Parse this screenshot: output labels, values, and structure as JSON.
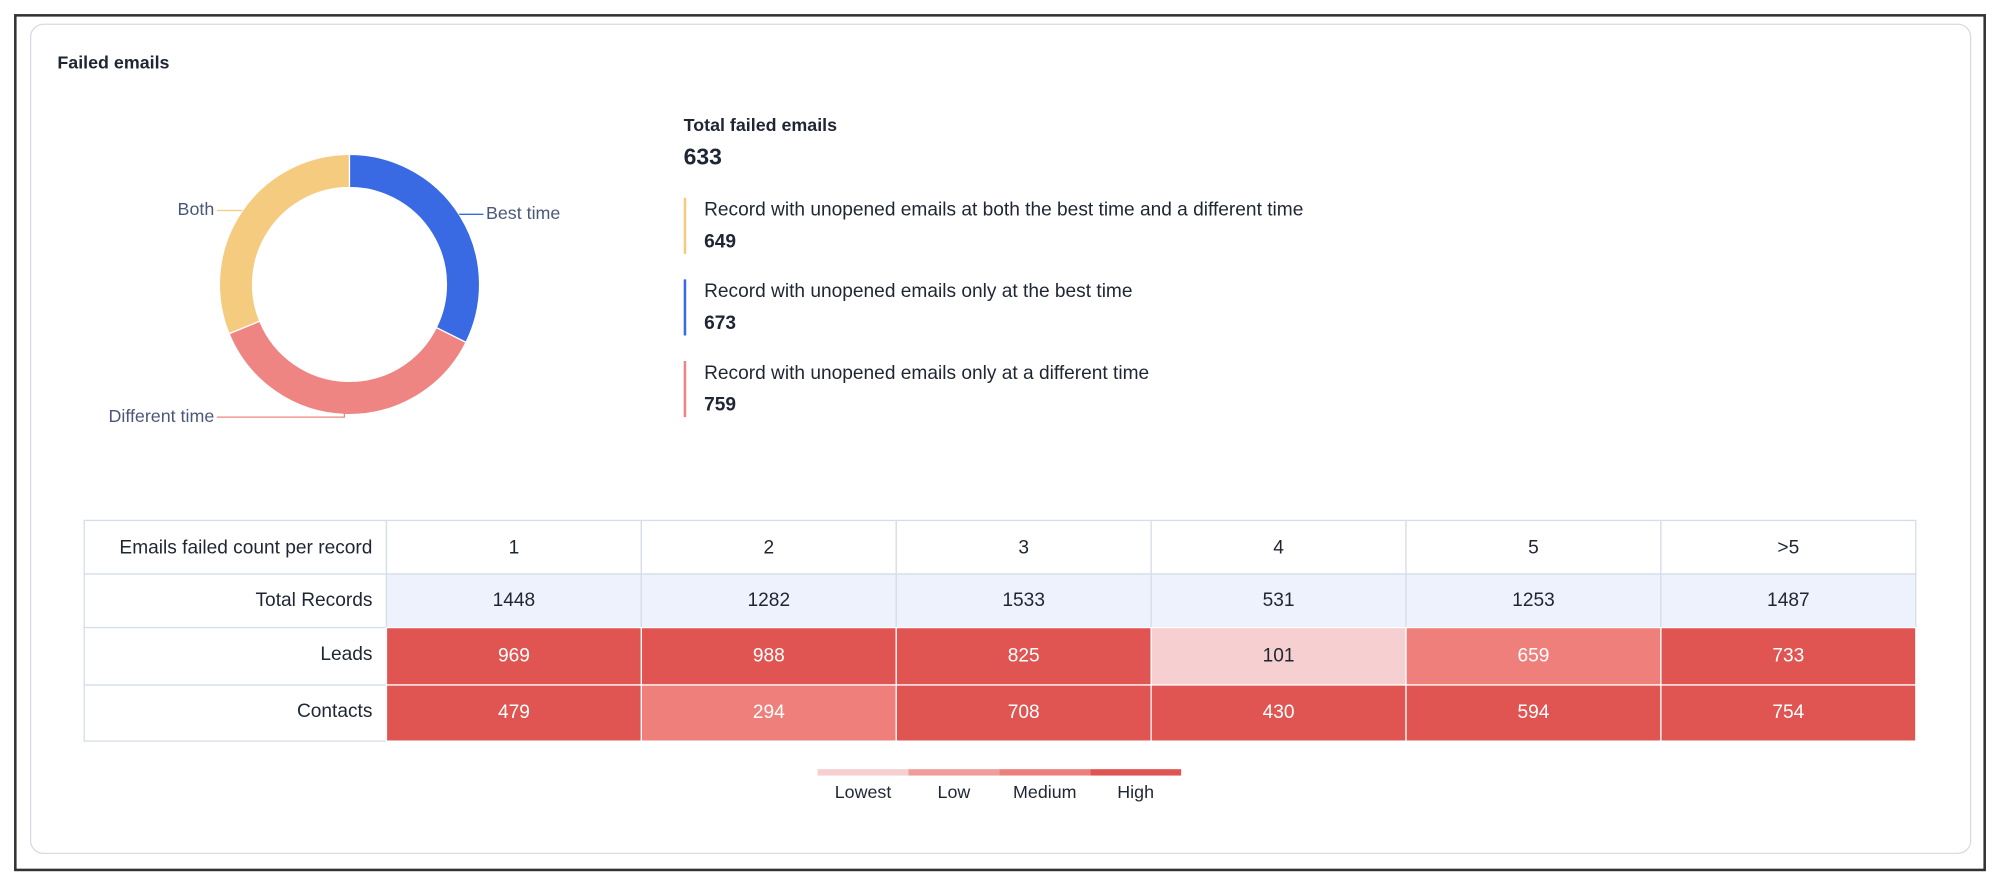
{
  "title": "Failed emails",
  "summary": {
    "label": "Total failed emails",
    "value": 633
  },
  "items": [
    {
      "name": "Both",
      "description": "Record with unopened emails at both the best time and a different time",
      "value": 649,
      "color": "#f5cc7f"
    },
    {
      "name": "Best time",
      "description": "Record with unopened emails only at the best time",
      "value": 673,
      "color": "#3a6ae3"
    },
    {
      "name": "Different time",
      "description": "Record with unopened emails only at a different time",
      "value": 759,
      "color": "#ee8583"
    }
  ],
  "table": {
    "header": {
      "label": "Emails failed count per record",
      "columns": [
        "1",
        "2",
        "3",
        "4",
        "5",
        ">5"
      ]
    },
    "rows": [
      {
        "label": "Total Records",
        "values": [
          1448,
          1282,
          1533,
          531,
          1253,
          1487
        ],
        "colors": [
          "#eef2fd",
          "#eef2fd",
          "#eef2fd",
          "#eef2fd",
          "#eef2fd",
          "#eef2fd"
        ]
      },
      {
        "label": "Leads",
        "values": [
          969,
          988,
          825,
          101,
          659,
          733
        ],
        "colors": [
          "#e05551",
          "#e05551",
          "#e05551",
          "#f6cfd0",
          "#ef7f7b",
          "#e05551"
        ]
      },
      {
        "label": "Contacts",
        "values": [
          479,
          294,
          708,
          430,
          594,
          754
        ],
        "colors": [
          "#e05551",
          "#ef7f7b",
          "#e05551",
          "#e05551",
          "#e05551",
          "#e05551"
        ]
      }
    ]
  },
  "legend": [
    {
      "label": "Lowest",
      "color": "#f6cfd0"
    },
    {
      "label": "Low",
      "color": "#ef9e9c"
    },
    {
      "label": "Medium",
      "color": "#ea7f7c"
    },
    {
      "label": "High",
      "color": "#e05551"
    }
  ]
}
